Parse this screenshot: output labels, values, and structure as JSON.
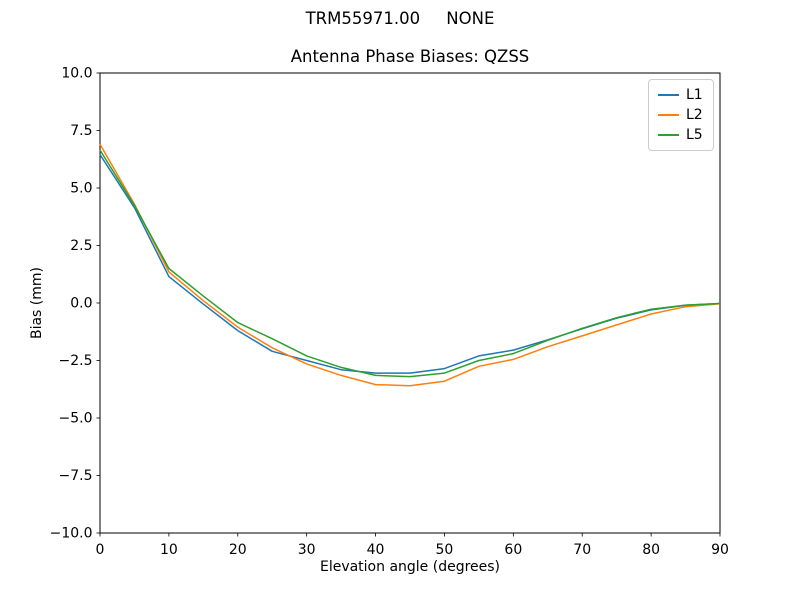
{
  "figure": {
    "suptitle": "TRM55971.00     NONE",
    "axes_title": "Antenna Phase Biases: QZSS",
    "xlabel": "Elevation angle (degrees)",
    "ylabel": "Bias (mm)"
  },
  "chart_data": {
    "type": "line",
    "title": "Antenna Phase Biases: QZSS",
    "suptitle": "TRM55971.00     NONE",
    "xlabel": "Elevation angle (degrees)",
    "ylabel": "Bias (mm)",
    "xlim": [
      0,
      90
    ],
    "ylim": [
      -10,
      10
    ],
    "xticks": [
      0,
      10,
      20,
      30,
      40,
      50,
      60,
      70,
      80,
      90
    ],
    "xtick_labels": [
      "0",
      "10",
      "20",
      "30",
      "40",
      "50",
      "60",
      "70",
      "80",
      "90"
    ],
    "yticks": [
      10,
      7.5,
      5,
      2.5,
      0,
      -2.5,
      -5,
      -7.5,
      -10
    ],
    "ytick_labels": [
      "10.0",
      "7.5",
      "5.0",
      "2.5",
      "0.0",
      "−2.5",
      "−5.0",
      "−7.5",
      "−10.0"
    ],
    "grid": false,
    "legend_position": "upper right",
    "axis_color": "#000000",
    "x": [
      0,
      5,
      10,
      15,
      20,
      25,
      30,
      35,
      40,
      45,
      50,
      55,
      60,
      65,
      70,
      75,
      80,
      85,
      90
    ],
    "series": [
      {
        "name": "L1",
        "color": "#1f77b4",
        "values": [
          6.45,
          4.15,
          1.15,
          -0.05,
          -1.2,
          -2.1,
          -2.5,
          -2.9,
          -3.05,
          -3.05,
          -2.85,
          -2.3,
          -2.05,
          -1.6,
          -1.12,
          -0.66,
          -0.3,
          -0.1,
          -0.02
        ]
      },
      {
        "name": "L2",
        "color": "#ff7f0e",
        "values": [
          6.9,
          4.3,
          1.35,
          0.1,
          -1.05,
          -1.95,
          -2.65,
          -3.15,
          -3.55,
          -3.6,
          -3.4,
          -2.75,
          -2.45,
          -1.9,
          -1.43,
          -0.95,
          -0.48,
          -0.16,
          -0.03
        ]
      },
      {
        "name": "L5",
        "color": "#2ca02c",
        "values": [
          6.65,
          4.25,
          1.5,
          0.3,
          -0.85,
          -1.55,
          -2.3,
          -2.8,
          -3.15,
          -3.2,
          -3.05,
          -2.5,
          -2.2,
          -1.62,
          -1.1,
          -0.64,
          -0.27,
          -0.09,
          -0.02
        ]
      }
    ]
  }
}
